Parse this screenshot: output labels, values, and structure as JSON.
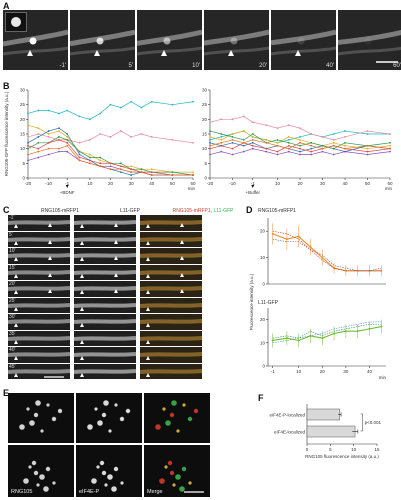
{
  "panels": {
    "A": {
      "letter": "A",
      "time_labels": [
        "-1'",
        "5'",
        "10'",
        "20'",
        "40'",
        "60'"
      ]
    },
    "B": {
      "letter": "B",
      "ylabel": "RNG105-GFP fluorescence intensity (a.u.)",
      "xunit": "min",
      "left_treatment": "+BDNF",
      "right_treatment": "+Buffer"
    },
    "C": {
      "letter": "C",
      "col_titles": [
        "RNG105-mRFP1",
        "L11-GFP",
        "RNG105-mRFP1, L11-GFP"
      ],
      "merge_title_red": "RNG105-mRFP1",
      "merge_title_green": "L11-GFP",
      "row_labels": [
        "-1'",
        "5'",
        "10'",
        "15'",
        "20'",
        "25'",
        "30'",
        "35'",
        "40'",
        "45'"
      ]
    },
    "D": {
      "letter": "D",
      "top_title": "RNG105-mRFP1",
      "bottom_title": "L11-GFP",
      "ylabel": "Fluorescence intensity (a.u.)",
      "xunit": "min"
    },
    "E": {
      "letter": "E",
      "labels": [
        "RNG105",
        "eIF4E-P",
        "Merge"
      ]
    },
    "F": {
      "letter": "F",
      "bars": [
        "eIF4E-P-localized",
        "eIF4E-localized"
      ],
      "pvalue": "p<0.001",
      "xlabel": "RNG105 fluorescence intensity (a.u.)"
    }
  },
  "colors": {
    "red_channel": "#d23b2a",
    "green_channel": "#39b54a"
  },
  "chart_data": [
    {
      "type": "line",
      "title": "",
      "xlabel": "min",
      "ylabel": "RNG105-GFP fluorescence intensity (a.u.)",
      "x": [
        -20,
        -15,
        -10,
        -5,
        -1,
        5,
        10,
        15,
        20,
        25,
        30,
        35,
        40,
        50,
        60
      ],
      "xticks": [
        -20,
        -10,
        -1,
        10,
        20,
        30,
        40,
        50,
        60
      ],
      "ylim": [
        0,
        30
      ],
      "yticks": [
        0,
        5,
        10,
        15,
        20,
        25,
        30
      ],
      "series": [
        {
          "color": "#1fb7c4",
          "values": [
            22,
            23,
            23,
            22,
            23,
            21,
            20,
            22,
            25,
            24,
            26,
            24,
            26,
            25,
            26
          ]
        },
        {
          "color": "#e68a9a",
          "values": [
            14,
            15,
            14,
            13,
            13,
            12,
            13,
            15,
            14,
            16,
            14,
            15,
            14,
            13,
            12
          ]
        },
        {
          "color": "#e0b020",
          "values": [
            18,
            17,
            15,
            16,
            14,
            9,
            8,
            6,
            5,
            4,
            4,
            3,
            3,
            2,
            2
          ]
        },
        {
          "color": "#2a6fb4",
          "values": [
            12,
            14,
            16,
            17,
            15,
            8,
            6,
            4,
            3,
            2,
            1,
            2,
            1,
            1,
            1
          ]
        },
        {
          "color": "#2c9a4a",
          "values": [
            10,
            12,
            12,
            14,
            13,
            9,
            7,
            7,
            5,
            5,
            3,
            3,
            2,
            2,
            1
          ]
        },
        {
          "color": "#d44",
          "values": [
            11,
            10,
            12,
            13,
            12,
            7,
            6,
            5,
            5,
            4,
            3,
            2,
            2,
            1,
            1
          ]
        },
        {
          "color": "#8a4fb8",
          "values": [
            6,
            7,
            8,
            9,
            9,
            6,
            5,
            4,
            4,
            3,
            2,
            2,
            1,
            1,
            1
          ]
        },
        {
          "color": "#e26f23",
          "values": [
            8,
            9,
            10,
            10,
            11,
            6,
            5,
            4,
            3,
            3,
            2,
            2,
            1,
            1,
            1
          ]
        }
      ]
    },
    {
      "type": "line",
      "title": "",
      "xlabel": "min",
      "ylabel": "",
      "x": [
        -20,
        -15,
        -10,
        -5,
        -1,
        5,
        10,
        15,
        20,
        25,
        30,
        35,
        40,
        50,
        60
      ],
      "xticks": [
        -20,
        -10,
        -1,
        10,
        20,
        30,
        40,
        50,
        60
      ],
      "ylim": [
        0,
        30
      ],
      "yticks": [
        0,
        5,
        10,
        15,
        20,
        25,
        30
      ],
      "series": [
        {
          "color": "#1fb7c4",
          "values": [
            13,
            14,
            15,
            16,
            14,
            13,
            12,
            13,
            14,
            15,
            14,
            15,
            16,
            15,
            15
          ]
        },
        {
          "color": "#e68a9a",
          "values": [
            19,
            20,
            20,
            21,
            19,
            18,
            17,
            18,
            17,
            15,
            14,
            13,
            14,
            16,
            15
          ]
        },
        {
          "color": "#e0b020",
          "values": [
            14,
            13,
            15,
            16,
            14,
            13,
            12,
            14,
            13,
            12,
            11,
            12,
            11,
            10,
            11
          ]
        },
        {
          "color": "#2a6fb4",
          "values": [
            12,
            11,
            12,
            11,
            12,
            10,
            11,
            10,
            9,
            10,
            11,
            10,
            9,
            11,
            10
          ]
        },
        {
          "color": "#2c9a4a",
          "values": [
            16,
            15,
            14,
            13,
            15,
            12,
            13,
            12,
            11,
            12,
            11,
            10,
            12,
            11,
            12
          ]
        },
        {
          "color": "#d44",
          "values": [
            10,
            11,
            10,
            12,
            11,
            10,
            9,
            11,
            10,
            9,
            10,
            11,
            10,
            9,
            10
          ]
        },
        {
          "color": "#8a4fb8",
          "values": [
            8,
            9,
            8,
            9,
            10,
            9,
            8,
            9,
            8,
            8,
            9,
            8,
            9,
            8,
            9
          ]
        },
        {
          "color": "#e26f23",
          "values": [
            11,
            12,
            13,
            12,
            13,
            12,
            11,
            10,
            12,
            11,
            10,
            11,
            10,
            11,
            10
          ]
        }
      ]
    },
    {
      "type": "line",
      "title": "RNG105-mRFP1",
      "xlabel": "min",
      "ylabel": "Fluorescence intensity (a.u.)",
      "x": [
        -1,
        5,
        10,
        15,
        20,
        25,
        30,
        35,
        40,
        45
      ],
      "ylim": [
        0,
        25
      ],
      "yticks": [
        0,
        10,
        20
      ],
      "series": [
        {
          "color": "#e88c2c",
          "values": [
            19,
            17,
            18,
            14,
            10,
            6,
            5,
            5,
            5,
            5
          ],
          "err": [
            4,
            4,
            4,
            3,
            3,
            2,
            2,
            2,
            2,
            2
          ]
        },
        {
          "color": "#d2332a",
          "values": [
            20,
            19,
            17,
            13,
            9,
            6,
            5,
            5,
            5,
            6
          ]
        },
        {
          "color": "#666666",
          "values": [
            17,
            16,
            16,
            13,
            11,
            7,
            6,
            5,
            5,
            5
          ]
        }
      ]
    },
    {
      "type": "line",
      "title": "L11-GFP",
      "xlabel": "min",
      "ylabel": "Fluorescence intensity (a.u.)",
      "x": [
        -1,
        5,
        10,
        15,
        20,
        25,
        30,
        35,
        40,
        45
      ],
      "xticks": [
        -1,
        10,
        20,
        30,
        40
      ],
      "ylim": [
        0,
        25
      ],
      "yticks": [
        0,
        10,
        20
      ],
      "series": [
        {
          "color": "#6cbf2f",
          "values": [
            11,
            12,
            11,
            13,
            12,
            14,
            15,
            15,
            16,
            17
          ],
          "err": [
            3,
            3,
            3,
            3,
            3,
            3,
            3,
            3,
            3,
            3
          ]
        },
        {
          "color": "#2e8b57",
          "values": [
            12,
            13,
            12,
            15,
            13,
            15,
            16,
            17,
            18,
            18
          ]
        },
        {
          "color": "#5b8fd6",
          "values": [
            10,
            11,
            12,
            13,
            14,
            16,
            17,
            18,
            19,
            19
          ]
        }
      ]
    },
    {
      "type": "bar",
      "title": "",
      "categories": [
        "eIF4E-P-localized",
        "eIF4E-localized"
      ],
      "values": [
        7,
        10.3
      ],
      "errors": [
        0.3,
        0.6
      ],
      "xlabel": "RNG105 fluorescence intensity (a.u.)",
      "xlim": [
        0,
        15
      ],
      "xticks": [
        0,
        5,
        10,
        15
      ]
    }
  ]
}
